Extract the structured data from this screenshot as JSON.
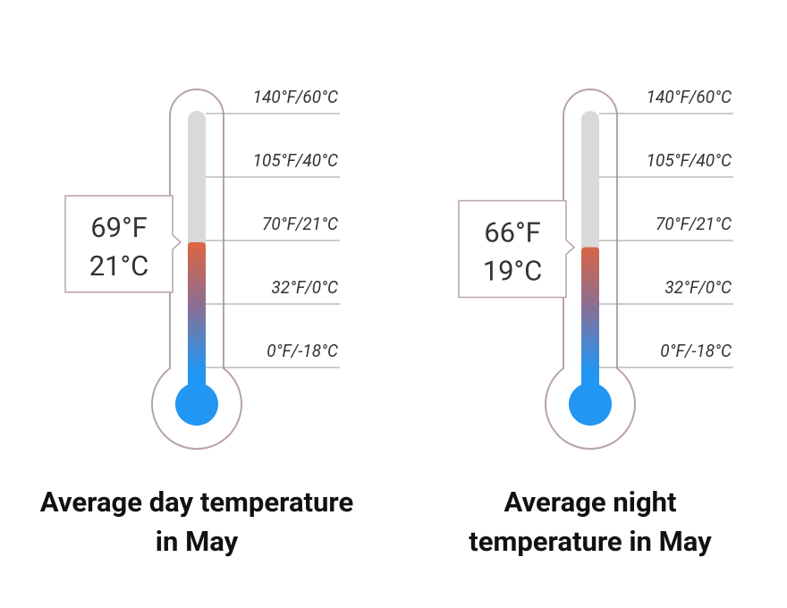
{
  "chart_data": [
    {
      "type": "thermometer",
      "title": "Average day temperature in May",
      "value": 69,
      "readout": [
        "69°F",
        "21°C"
      ],
      "ylim": [
        0,
        140
      ],
      "yticks": [
        {
          "value": 0,
          "label": "0°F/-18°C"
        },
        {
          "value": 32,
          "label": "32°F/0°C"
        },
        {
          "value": 70,
          "label": "70°F/21°C"
        },
        {
          "value": 105,
          "label": "105°F/40°C"
        },
        {
          "value": 140,
          "label": "140°F/60°C"
        }
      ],
      "colors": [
        "#e0643f",
        "#2196f3"
      ]
    },
    {
      "type": "thermometer",
      "title": "Average night temperature in May",
      "value": 66,
      "readout": [
        "66°F",
        "19°C"
      ],
      "ylim": [
        0,
        140
      ],
      "yticks": [
        {
          "value": 0,
          "label": "0°F/-18°C"
        },
        {
          "value": 32,
          "label": "32°F/0°C"
        },
        {
          "value": 70,
          "label": "70°F/21°C"
        },
        {
          "value": 105,
          "label": "105°F/40°C"
        },
        {
          "value": 140,
          "label": "140°F/60°C"
        }
      ],
      "colors": [
        "#e0643f",
        "#2196f3"
      ]
    }
  ]
}
